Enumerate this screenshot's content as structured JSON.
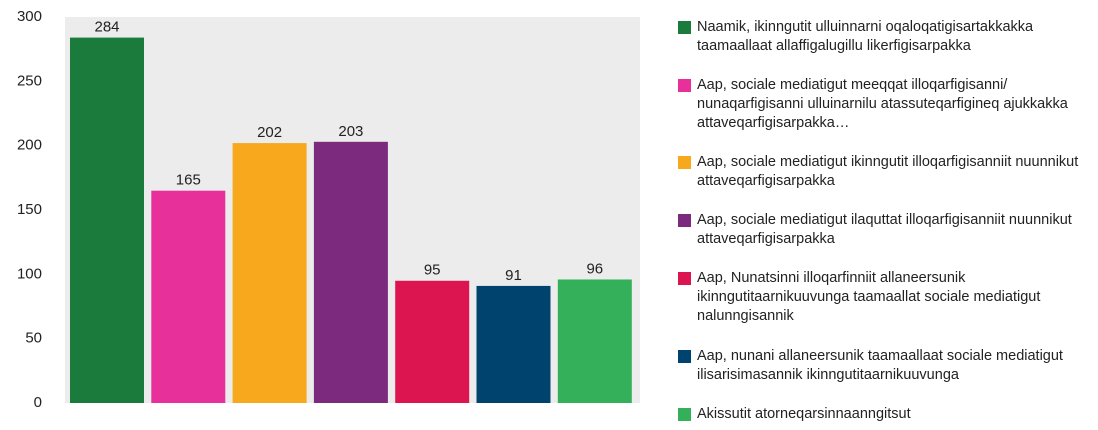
{
  "chart_data": {
    "type": "bar",
    "categories": [
      "Naamik, ikinngutit ulluinnarni oqaloqatigisartakkakka taamaallaat allaffigalugillu likerfigisarpakka",
      "Aap, sociale mediatigut meeqqat illoqarfigisanni/ nunaqarfigisanni ulluinarnilu atassuteqarfigineq ajukkakka attaveqarfigisarpakka…",
      "Aap, sociale mediatigut ikinngutit illoqarfigisanniit nuunnikut attaveqarfigisarpakka",
      "Aap, sociale mediatigut ilaquttat illoqarfigisanniit nuunnikut attaveqarfigisarpakka",
      "Aap, Nunatsinni illoqarfinniit allaneersunik ikinngutitaarnikuuvunga taamaallat sociale mediatigut nalunngisannik",
      "Aap, nunani allaneersunik taamaallaat sociale mediatigut ilisarisimasannik ikinngutitaarnikuuvunga",
      "Akissutit atorneqarsinnaanngitsut"
    ],
    "values": [
      284,
      165,
      202,
      203,
      95,
      91,
      96
    ],
    "colors": [
      "#1a7b3c",
      "#e8309a",
      "#f7a81d",
      "#7b2a7d",
      "#dc1550",
      "#00436e",
      "#35b05a"
    ],
    "ylim": [
      0,
      300
    ],
    "yticks": [
      0,
      50,
      100,
      150,
      200,
      250,
      300
    ],
    "grid": false
  }
}
